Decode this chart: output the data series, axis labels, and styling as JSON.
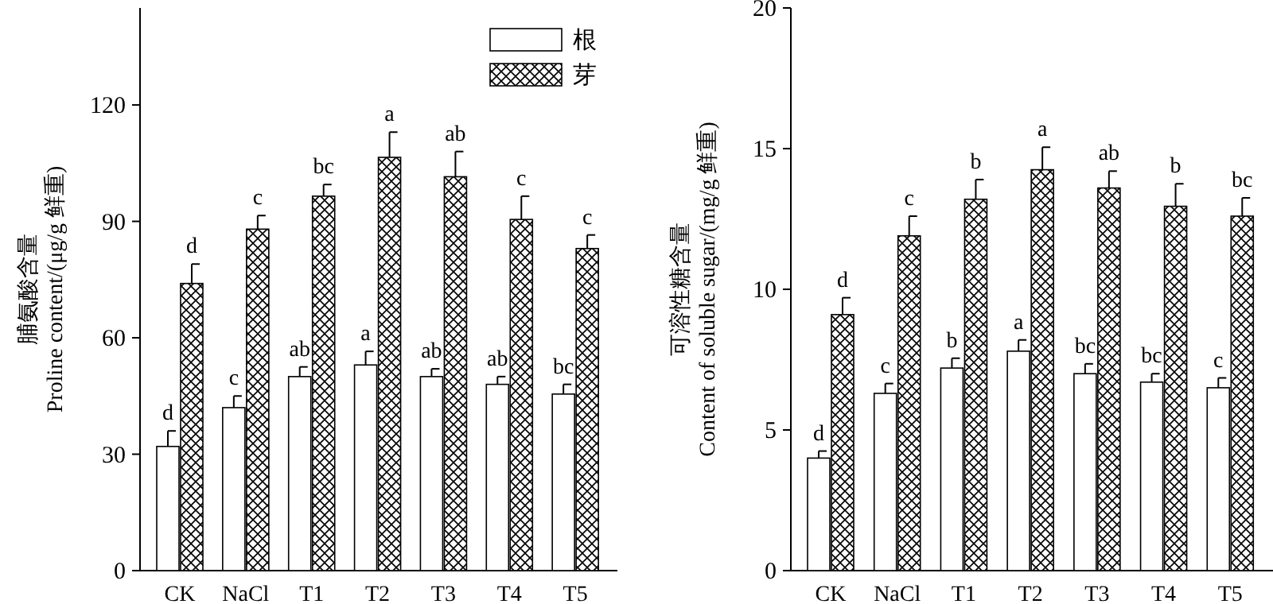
{
  "chart_data": [
    {
      "type": "bar",
      "categories": [
        "CK",
        "NaCl",
        "T1",
        "T2",
        "T3",
        "T4",
        "T5"
      ],
      "ylabel": "脯氨酸含量\nProline content/(μg/g 鲜重)",
      "ylim": [
        0,
        145
      ],
      "yticks": [
        0,
        30,
        60,
        90,
        120
      ],
      "legend": "top right",
      "grid": false,
      "series": [
        {
          "name": "根",
          "color": "#ffffff",
          "values": [
            32,
            42,
            50,
            53,
            50,
            48,
            45.5
          ],
          "errors": [
            4,
            3,
            2.5,
            3.5,
            2,
            2,
            2.5
          ],
          "value_labels": [
            "d",
            "c",
            "ab",
            "a",
            "ab",
            "ab",
            "bc"
          ]
        },
        {
          "name": "芽",
          "color": "#000000",
          "values": [
            74,
            88,
            96.5,
            106.5,
            101.5,
            90.5,
            83
          ],
          "errors": [
            5,
            3.5,
            3,
            6.5,
            6.5,
            6,
            3.5
          ],
          "value_labels": [
            "d",
            "c",
            "bc",
            "a",
            "ab",
            "c",
            "c"
          ]
        }
      ]
    },
    {
      "type": "bar",
      "categories": [
        "CK",
        "NaCl",
        "T1",
        "T2",
        "T3",
        "T4",
        "T5"
      ],
      "ylabel": "可溶性糖含量\nContent of soluble sugar/(mg/g 鲜重)",
      "ylim": [
        0,
        20
      ],
      "yticks": [
        0,
        5,
        10,
        15,
        20
      ],
      "grid": false,
      "series": [
        {
          "color": "#ffffff",
          "values": [
            4.0,
            6.3,
            7.2,
            7.8,
            7.0,
            6.7,
            6.5
          ],
          "errors": [
            0.25,
            0.35,
            0.35,
            0.4,
            0.35,
            0.3,
            0.35
          ],
          "value_labels": [
            "d",
            "c",
            "b",
            "a",
            "bc",
            "bc",
            "c"
          ]
        },
        {
          "color": "#000000",
          "values": [
            9.1,
            11.9,
            13.2,
            14.25,
            13.6,
            12.95,
            12.6
          ],
          "errors": [
            0.6,
            0.7,
            0.7,
            0.8,
            0.6,
            0.8,
            0.65
          ],
          "value_labels": [
            "d",
            "c",
            "b",
            "a",
            "ab",
            "b",
            "bc"
          ]
        }
      ]
    }
  ]
}
